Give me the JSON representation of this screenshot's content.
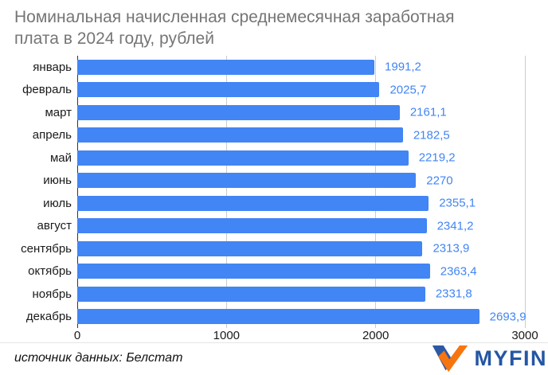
{
  "title": {
    "line1": "Номинальная начисленная среднемесячная заработная",
    "line2": "плата в 2024 году, рублей"
  },
  "chart_data": {
    "type": "bar",
    "orientation": "horizontal",
    "title": "Номинальная начисленная среднемесячная заработная плата в 2024 году, рублей",
    "categories": [
      "январь",
      "февраль",
      "март",
      "апрель",
      "май",
      "июнь",
      "июль",
      "август",
      "сентябрь",
      "октябрь",
      "ноябрь",
      "декабрь"
    ],
    "values": [
      1991.2,
      2025.7,
      2161.1,
      2182.5,
      2219.2,
      2270,
      2355.1,
      2341.2,
      2313.9,
      2363.4,
      2331.8,
      2693.9
    ],
    "value_labels": [
      "1991,2",
      "2025,7",
      "2161,1",
      "2182,5",
      "2219,2",
      "2270",
      "2355,1",
      "2341,2",
      "2313,9",
      "2363,4",
      "2331,8",
      "2693,9"
    ],
    "xlim": [
      0,
      3000
    ],
    "xticks": [
      0,
      1000,
      2000,
      3000
    ],
    "grid": true,
    "legend": "none",
    "bar_color": "#4285f4",
    "value_label_color": "#4285f4",
    "gridline_color": "#cccccc",
    "axis_line_color": "#333333"
  },
  "footer": {
    "source": "источник данных: Белстат",
    "logo_text": "MYFIN",
    "logo_blue": "#2c59a5",
    "logo_orange": "#f7750e"
  }
}
